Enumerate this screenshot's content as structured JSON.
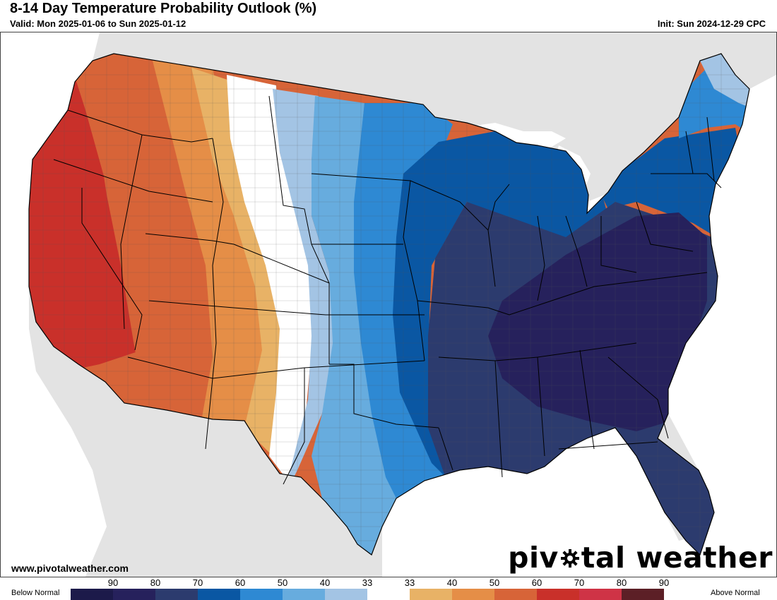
{
  "header": {
    "title": "8-14 Day Temperature Probability Outlook (%)",
    "valid": "Valid: Mon 2025-01-06 to Sun 2025-01-12",
    "init": "Init: Sun 2024-12-29 CPC"
  },
  "footer": {
    "website": "www.pivotalweather.com",
    "brand_part1": "piv",
    "brand_part2": "tal weather",
    "brand_gear_icon": "gear-icon"
  },
  "legend": {
    "left_label": "Below Normal",
    "right_label": "Above Normal",
    "entries": [
      {
        "label": "90",
        "category": "below",
        "min": 90,
        "color": "#1c1a4a"
      },
      {
        "label": "80",
        "category": "below",
        "min": 80,
        "color": "#26215c"
      },
      {
        "label": "70",
        "category": "below",
        "min": 70,
        "color": "#2c3b6e"
      },
      {
        "label": "60",
        "category": "below",
        "min": 60,
        "color": "#0a57a3"
      },
      {
        "label": "50",
        "category": "below",
        "min": 50,
        "color": "#2e89d3"
      },
      {
        "label": "40",
        "category": "below",
        "min": 40,
        "color": "#67acde"
      },
      {
        "label": "33",
        "category": "below",
        "min": 33,
        "color": "#a3c4e4"
      },
      {
        "label": "33",
        "category": "near",
        "min": 33,
        "color": "#ffffff"
      },
      {
        "label": "40",
        "category": "above",
        "min": 40,
        "color": "#e8b266"
      },
      {
        "label": "50",
        "category": "above",
        "min": 50,
        "color": "#e58e47"
      },
      {
        "label": "60",
        "category": "above",
        "min": 60,
        "color": "#d76438"
      },
      {
        "label": "70",
        "category": "above",
        "min": 70,
        "color": "#c9302a"
      },
      {
        "label": "80",
        "category": "above",
        "min": 80,
        "color": "#cf3346"
      },
      {
        "label": "90",
        "category": "above",
        "min": 90,
        "color": "#5c1f26"
      }
    ]
  },
  "map": {
    "colors": {
      "background": "#e3e3e3",
      "water": "#ffffff",
      "state_border": "#000000",
      "county_border": "#555555"
    },
    "regions": [
      {
        "name": "pacific-northwest-above-60",
        "category": "above",
        "probability": "60"
      },
      {
        "name": "california-above-70",
        "category": "above",
        "probability": "70"
      },
      {
        "name": "southwest-above-60",
        "category": "above",
        "probability": "60"
      },
      {
        "name": "intermountain-above-50",
        "category": "above",
        "probability": "50"
      },
      {
        "name": "rockies-above-40",
        "category": "above",
        "probability": "40"
      },
      {
        "name": "high-plains-near-normal",
        "category": "near",
        "probability": "33"
      },
      {
        "name": "plains-below-33",
        "category": "below",
        "probability": "33"
      },
      {
        "name": "plains-below-40",
        "category": "below",
        "probability": "40"
      },
      {
        "name": "central-below-50",
        "category": "below",
        "probability": "50"
      },
      {
        "name": "mississippi-below-60",
        "category": "below",
        "probability": "60"
      },
      {
        "name": "east-below-70",
        "category": "below",
        "probability": "70"
      },
      {
        "name": "southeast-below-80",
        "category": "below",
        "probability": "80"
      },
      {
        "name": "new-england-below-60",
        "category": "below",
        "probability": "60"
      },
      {
        "name": "maine-below-50",
        "category": "below",
        "probability": "50"
      },
      {
        "name": "northern-maine-below-40",
        "category": "below",
        "probability": "40"
      }
    ]
  }
}
